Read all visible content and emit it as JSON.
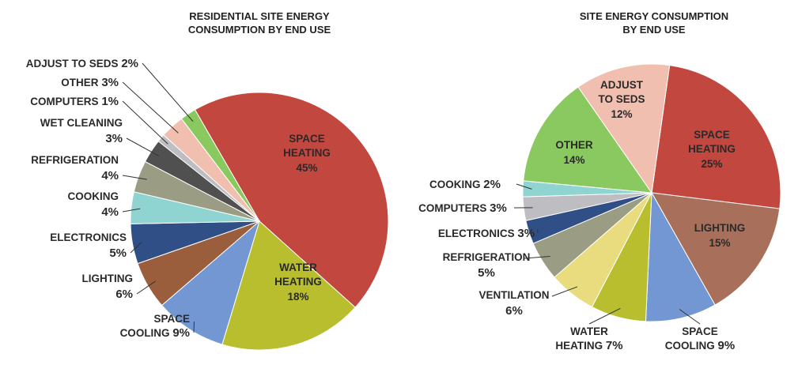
{
  "chart_data": [
    {
      "type": "pie",
      "title": "RESIDENTIAL SITE ENERGY CONSUMPTION BY END USE",
      "title_lines": [
        "RESIDENTIAL SITE ENERGY",
        "CONSUMPTION BY END USE"
      ],
      "slices": [
        {
          "label": "SPACE HEATING",
          "lines": [
            "SPACE",
            "HEATING"
          ],
          "value": 45,
          "pct": "45%",
          "color": "#c1473f"
        },
        {
          "label": "WATER HEATING",
          "lines": [
            "WATER",
            "HEATING"
          ],
          "value": 18,
          "pct": "18%",
          "color": "#b8be2e"
        },
        {
          "label": "SPACE COOLING",
          "lines": [
            "SPACE",
            "COOLING"
          ],
          "value": 9,
          "pct": "9%",
          "color": "#7397d2"
        },
        {
          "label": "LIGHTING",
          "lines": [
            "LIGHTING"
          ],
          "value": 6,
          "pct": "6%",
          "color": "#9b5e3c"
        },
        {
          "label": "ELECTRONICS",
          "lines": [
            "ELECTRONICS"
          ],
          "value": 5,
          "pct": "5%",
          "color": "#2f4f86"
        },
        {
          "label": "COOKING",
          "lines": [
            "COOKING"
          ],
          "value": 4,
          "pct": "4%",
          "color": "#8fd4d0"
        },
        {
          "label": "REFRIGERATION",
          "lines": [
            "REFRIGERATION"
          ],
          "value": 4,
          "pct": "4%",
          "color": "#9a9d84"
        },
        {
          "label": "WET CLEANING",
          "lines": [
            "WET CLEANING"
          ],
          "value": 3,
          "pct": "3%",
          "color": "#505050"
        },
        {
          "label": "COMPUTERS",
          "lines": [
            "COMPUTERS"
          ],
          "value": 1,
          "pct": "1%",
          "color": "#bdbdc2"
        },
        {
          "label": "OTHER",
          "lines": [
            "OTHER"
          ],
          "value": 3,
          "pct": "3%",
          "color": "#f0bfb0"
        },
        {
          "label": "ADJUST TO SEDS",
          "lines": [
            "ADJUST TO SEDS"
          ],
          "value": 2,
          "pct": "2%",
          "color": "#8ac960"
        }
      ]
    },
    {
      "type": "pie",
      "title": "SITE ENERGY CONSUMPTION BY END USE",
      "title_lines": [
        "SITE ENERGY CONSUMPTION",
        "BY END USE"
      ],
      "slices": [
        {
          "label": "SPACE HEATING",
          "lines": [
            "SPACE",
            "HEATING"
          ],
          "value": 25,
          "pct": "25%",
          "color": "#c1473f"
        },
        {
          "label": "LIGHTING",
          "lines": [
            "LIGHTING"
          ],
          "value": 15,
          "pct": "15%",
          "color": "#a8705a"
        },
        {
          "label": "SPACE COOLING",
          "lines": [
            "SPACE",
            "COOLING"
          ],
          "value": 9,
          "pct": "9%",
          "color": "#7397d2"
        },
        {
          "label": "WATER HEATING",
          "lines": [
            "WATER",
            "HEATING"
          ],
          "value": 7,
          "pct": "7%",
          "color": "#b8be2e"
        },
        {
          "label": "VENTILATION",
          "lines": [
            "VENTILATION"
          ],
          "value": 6,
          "pct": "6%",
          "color": "#e8dc7e"
        },
        {
          "label": "REFRIGERATION",
          "lines": [
            "REFRIGERATION"
          ],
          "value": 5,
          "pct": "5%",
          "color": "#9a9d84"
        },
        {
          "label": "ELECTRONICS",
          "lines": [
            "ELECTRONICS"
          ],
          "value": 3,
          "pct": "3%",
          "color": "#2f4f86"
        },
        {
          "label": "COMPUTERS",
          "lines": [
            "COMPUTERS"
          ],
          "value": 3,
          "pct": "3%",
          "color": "#bdbdc2"
        },
        {
          "label": "COOKING",
          "lines": [
            "COOKING"
          ],
          "value": 2,
          "pct": "2%",
          "color": "#8fd4d0"
        },
        {
          "label": "OTHER",
          "lines": [
            "OTHER"
          ],
          "value": 14,
          "pct": "14%",
          "color": "#8ac960"
        },
        {
          "label": "ADJUST TO SEDS",
          "lines": [
            "ADJUST",
            "TO SEDS"
          ],
          "value": 12,
          "pct": "12%",
          "color": "#f0bfb0"
        }
      ]
    }
  ]
}
